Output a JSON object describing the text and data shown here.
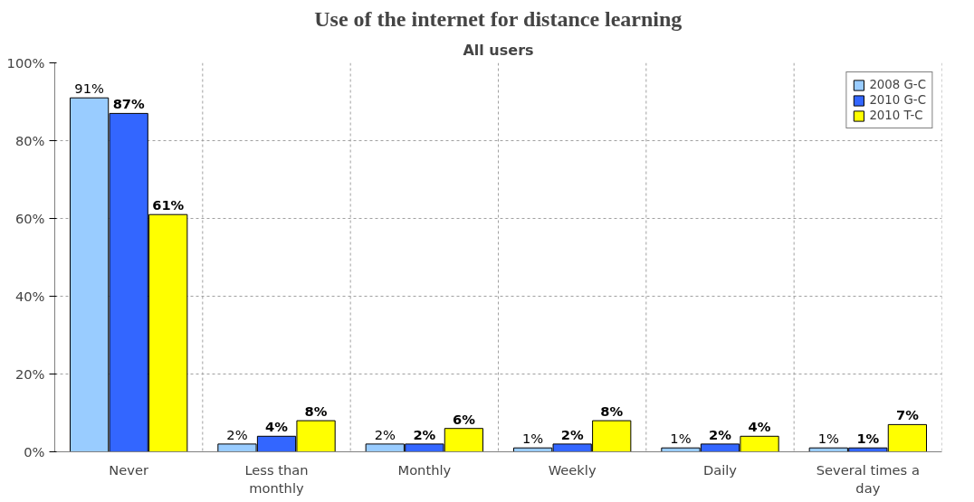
{
  "chart_data": {
    "type": "bar",
    "title": "Use of the internet for distance learning",
    "subtitle": "All users",
    "categories": [
      "Never",
      "Less than monthly",
      "Monthly",
      "Weekly",
      "Daily",
      "Several times a day"
    ],
    "series": [
      {
        "name": "2008 G-C",
        "color": "#99ccff",
        "values": [
          91,
          2,
          2,
          1,
          1,
          1
        ],
        "value_labels": [
          "91%",
          "2%",
          "2%",
          "1%",
          "1%",
          "1%"
        ]
      },
      {
        "name": "2010 G-C",
        "color": "#3366ff",
        "values": [
          87,
          4,
          2,
          2,
          2,
          1
        ],
        "value_labels": [
          "87%",
          "4%",
          "2%",
          "2%",
          "2%",
          "1%"
        ]
      },
      {
        "name": "2010 T-C",
        "color": "#ffff00",
        "values": [
          61,
          8,
          6,
          8,
          4,
          7
        ],
        "value_labels": [
          "61%",
          "8%",
          "6%",
          "8%",
          "4%",
          "7%"
        ]
      }
    ],
    "ylim": [
      0,
      100
    ],
    "yticks": [
      {
        "value": 0,
        "label": "0%"
      },
      {
        "value": 20,
        "label": "20%"
      },
      {
        "value": 40,
        "label": "40%"
      },
      {
        "value": 60,
        "label": "60%"
      },
      {
        "value": 80,
        "label": "80%"
      },
      {
        "value": 100,
        "label": "100%"
      }
    ],
    "grid": true,
    "legend": "top right"
  }
}
